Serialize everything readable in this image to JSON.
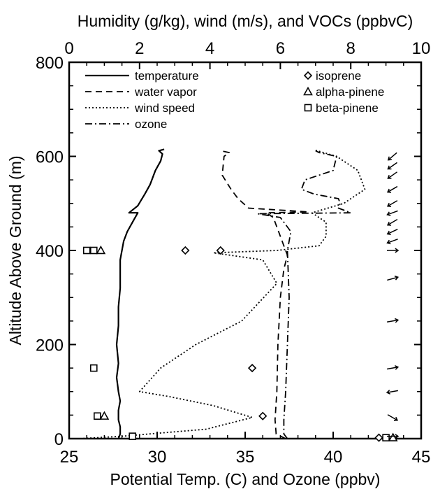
{
  "chart_data": {
    "type": "line",
    "title": "",
    "xlabel_bottom": "Potential Temp. (C) and Ozone (ppbv)",
    "xlabel_top": "Humidity (g/kg), wind (m/s), and VOCs (ppbvC)",
    "ylabel": "Altitude Above Ground (m)",
    "xlim_bottom": [
      25,
      45
    ],
    "xlim_top": [
      0,
      10
    ],
    "ylim": [
      0,
      800
    ],
    "xticks_bottom": [
      "25",
      "30",
      "35",
      "40",
      "45"
    ],
    "xticks_top": [
      "0",
      "2",
      "4",
      "6",
      "8",
      "10"
    ],
    "yticks": [
      "0",
      "200",
      "400",
      "600",
      "800"
    ],
    "grid": false,
    "legend_position": "top",
    "legend_left": [
      "temperature",
      "water vapor",
      "wind speed",
      "ozone"
    ],
    "legend_right": [
      "isoprene",
      "alpha-pinene",
      "beta-pinene"
    ],
    "series": [
      {
        "name": "temperature",
        "axis": "bottom",
        "style": "solid",
        "points": [
          [
            27.8,
            0
          ],
          [
            27.9,
            10
          ],
          [
            27.9,
            25
          ],
          [
            27.8,
            40
          ],
          [
            27.8,
            60
          ],
          [
            27.9,
            80
          ],
          [
            27.8,
            100
          ],
          [
            27.7,
            130
          ],
          [
            27.8,
            160
          ],
          [
            27.7,
            200
          ],
          [
            27.8,
            240
          ],
          [
            27.8,
            280
          ],
          [
            27.9,
            320
          ],
          [
            27.9,
            360
          ],
          [
            27.9,
            380
          ],
          [
            28.0,
            400
          ],
          [
            28.1,
            420
          ],
          [
            28.3,
            440
          ],
          [
            28.6,
            460
          ],
          [
            28.9,
            480
          ],
          [
            28.4,
            480
          ],
          [
            28.9,
            495
          ],
          [
            29.3,
            520
          ],
          [
            29.6,
            540
          ],
          [
            29.9,
            570
          ],
          [
            30.2,
            590
          ],
          [
            30.3,
            605
          ],
          [
            30.1,
            612
          ],
          [
            30.4,
            615
          ]
        ]
      },
      {
        "name": "water vapor",
        "axis": "top",
        "style": "dashed",
        "points": [
          [
            6.15,
            0
          ],
          [
            5.88,
            10
          ],
          [
            5.85,
            40
          ],
          [
            5.9,
            100
          ],
          [
            5.93,
            200
          ],
          [
            6.0,
            300
          ],
          [
            6.1,
            360
          ],
          [
            6.2,
            390
          ],
          [
            6.1,
            410
          ],
          [
            5.95,
            440
          ],
          [
            5.8,
            470
          ],
          [
            5.6,
            480
          ],
          [
            6.8,
            482
          ],
          [
            5.1,
            490
          ],
          [
            4.8,
            510
          ],
          [
            4.6,
            530
          ],
          [
            4.35,
            560
          ],
          [
            4.4,
            600
          ],
          [
            4.55,
            608
          ],
          [
            4.3,
            612
          ]
        ]
      },
      {
        "name": "wind speed",
        "axis": "top",
        "style": "dotted",
        "points": [
          [
            0.3,
            0
          ],
          [
            1.5,
            5
          ],
          [
            3.9,
            20
          ],
          [
            5.2,
            45
          ],
          [
            4.1,
            70
          ],
          [
            2.8,
            90
          ],
          [
            2.0,
            100
          ],
          [
            2.6,
            150
          ],
          [
            3.6,
            200
          ],
          [
            4.9,
            250
          ],
          [
            5.9,
            330
          ],
          [
            5.5,
            380
          ],
          [
            4.1,
            395
          ],
          [
            5.9,
            400
          ],
          [
            7.1,
            410
          ],
          [
            7.3,
            430
          ],
          [
            7.3,
            460
          ],
          [
            6.9,
            480
          ],
          [
            7.8,
            500
          ],
          [
            8.4,
            530
          ],
          [
            8.2,
            570
          ],
          [
            7.6,
            600
          ],
          [
            7.0,
            613
          ]
        ]
      },
      {
        "name": "ozone",
        "axis": "bottom",
        "style": "dashdot",
        "points": [
          [
            37.4,
            0
          ],
          [
            37.2,
            10
          ],
          [
            37.2,
            40
          ],
          [
            37.3,
            100
          ],
          [
            37.4,
            200
          ],
          [
            37.5,
            300
          ],
          [
            37.4,
            400
          ],
          [
            37.6,
            440
          ],
          [
            37.0,
            470
          ],
          [
            35.7,
            478
          ],
          [
            41.0,
            480
          ],
          [
            40.3,
            490
          ],
          [
            40.4,
            500
          ],
          [
            40.3,
            510
          ],
          [
            38.9,
            520
          ],
          [
            38.2,
            530
          ],
          [
            38.4,
            550
          ],
          [
            40.0,
            570
          ],
          [
            40.2,
            600
          ],
          [
            39.2,
            608
          ],
          [
            39.0,
            612
          ]
        ]
      },
      {
        "name": "isoprene",
        "axis": "top",
        "marker": "diamond",
        "points": [
          [
            8.8,
            2
          ],
          [
            5.5,
            48
          ],
          [
            5.2,
            150
          ],
          [
            3.3,
            400
          ],
          [
            4.3,
            400
          ]
        ]
      },
      {
        "name": "alpha-pinene",
        "axis": "top",
        "marker": "triangle",
        "points": [
          [
            9.2,
            2
          ],
          [
            1.0,
            48
          ],
          [
            0.9,
            400
          ]
        ]
      },
      {
        "name": "beta-pinene",
        "axis": "top",
        "marker": "square",
        "points": [
          [
            9.0,
            2
          ],
          [
            1.8,
            5
          ],
          [
            0.8,
            48
          ],
          [
            0.7,
            150
          ],
          [
            0.5,
            400
          ],
          [
            0.7,
            400
          ]
        ]
      }
    ],
    "wind_direction_arrows": [
      {
        "altitude": 5,
        "direction_deg": 0
      },
      {
        "altitude": 45,
        "direction_deg": 330
      },
      {
        "altitude": 100,
        "direction_deg": 190
      },
      {
        "altitude": 150,
        "direction_deg": 10
      },
      {
        "altitude": 250,
        "direction_deg": 10
      },
      {
        "altitude": 340,
        "direction_deg": 15
      },
      {
        "altitude": 400,
        "direction_deg": 0
      },
      {
        "altitude": 420,
        "direction_deg": 200
      },
      {
        "altitude": 440,
        "direction_deg": 205
      },
      {
        "altitude": 460,
        "direction_deg": 210
      },
      {
        "altitude": 480,
        "direction_deg": 200
      },
      {
        "altitude": 500,
        "direction_deg": 210
      },
      {
        "altitude": 530,
        "direction_deg": 210
      },
      {
        "altitude": 560,
        "direction_deg": 215
      },
      {
        "altitude": 580,
        "direction_deg": 215
      },
      {
        "altitude": 600,
        "direction_deg": 220
      }
    ]
  }
}
